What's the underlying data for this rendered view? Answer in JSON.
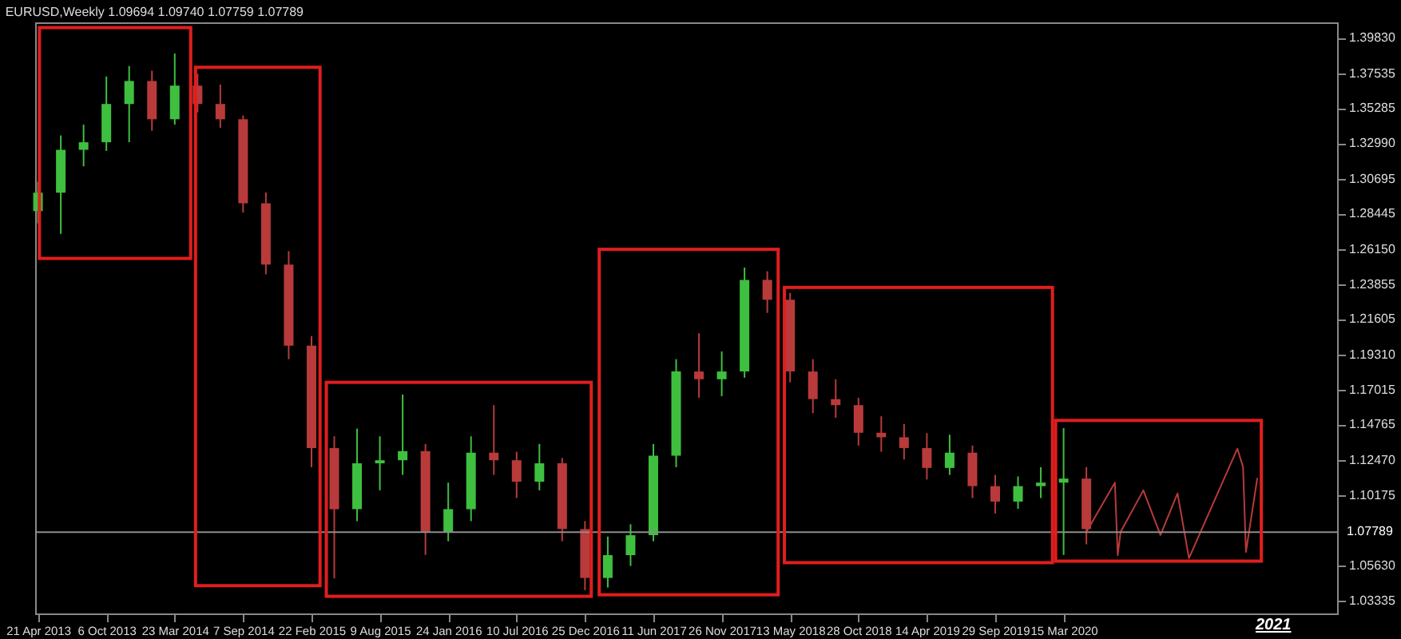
{
  "chart_data": {
    "type": "candlestick",
    "title": "EURUSD,Weekly  1.09694 1.09740 1.07759 1.07789",
    "x": [
      "2013-04-21",
      "2013-06-16",
      "2013-08-11",
      "2013-10-06",
      "2013-12-01",
      "2014-01-26",
      "2014-03-23",
      "2014-05-18",
      "2014-07-13",
      "2014-09-07",
      "2014-11-02",
      "2014-12-28",
      "2015-02-22",
      "2015-04-19",
      "2015-06-14",
      "2015-08-09",
      "2015-10-04",
      "2015-11-29",
      "2016-01-24",
      "2016-03-20",
      "2016-05-15",
      "2016-07-10",
      "2016-09-04",
      "2016-10-30",
      "2016-12-25",
      "2017-02-19",
      "2017-04-16",
      "2017-06-11",
      "2017-08-06",
      "2017-10-01",
      "2017-11-26",
      "2018-01-21",
      "2018-03-18",
      "2018-05-13",
      "2018-07-08",
      "2018-09-02",
      "2018-10-28",
      "2018-12-23",
      "2019-02-17",
      "2019-04-14",
      "2019-06-09",
      "2019-08-04",
      "2019-09-29",
      "2019-11-24",
      "2020-01-19",
      "2020-03-15",
      "2020-05-10"
    ],
    "ohlc": [
      [
        1.286,
        1.305,
        1.278,
        1.2979
      ],
      [
        1.2979,
        1.335,
        1.2712,
        1.3257
      ],
      [
        1.3257,
        1.342,
        1.315,
        1.3306
      ],
      [
        1.3306,
        1.3732,
        1.325,
        1.3554
      ],
      [
        1.3554,
        1.38,
        1.3306,
        1.3703
      ],
      [
        1.3703,
        1.377,
        1.338,
        1.3455
      ],
      [
        1.3455,
        1.3881,
        1.342,
        1.3673
      ],
      [
        1.3673,
        1.375,
        1.35,
        1.3554
      ],
      [
        1.3554,
        1.368,
        1.34,
        1.3455
      ],
      [
        1.3455,
        1.348,
        1.285,
        1.291
      ],
      [
        1.291,
        1.298,
        1.245,
        1.2513
      ],
      [
        1.2513,
        1.26,
        1.19,
        1.1988
      ],
      [
        1.1988,
        1.205,
        1.12,
        1.1324
      ],
      [
        1.1324,
        1.14,
        1.048,
        1.0928
      ],
      [
        1.0928,
        1.145,
        1.085,
        1.1225
      ],
      [
        1.1225,
        1.14,
        1.105,
        1.1245
      ],
      [
        1.1245,
        1.1671,
        1.115,
        1.1304
      ],
      [
        1.1304,
        1.135,
        1.0631,
        1.0779
      ],
      [
        1.0779,
        1.11,
        1.072,
        1.0928
      ],
      [
        1.0928,
        1.14,
        1.085,
        1.1294
      ],
      [
        1.1294,
        1.1602,
        1.115,
        1.1245
      ],
      [
        1.1245,
        1.13,
        1.1,
        1.1106
      ],
      [
        1.1106,
        1.135,
        1.105,
        1.1225
      ],
      [
        1.1225,
        1.126,
        1.072,
        1.0799
      ],
      [
        1.0799,
        1.085,
        1.0403,
        1.0482
      ],
      [
        1.0482,
        1.075,
        1.042,
        1.063
      ],
      [
        1.063,
        1.083,
        1.056,
        1.0759
      ],
      [
        1.0759,
        1.135,
        1.072,
        1.1275
      ],
      [
        1.1275,
        1.19,
        1.12,
        1.182
      ],
      [
        1.182,
        1.2068,
        1.165,
        1.177
      ],
      [
        1.177,
        1.195,
        1.166,
        1.182
      ],
      [
        1.182,
        1.2494,
        1.178,
        1.2414
      ],
      [
        1.2414,
        1.247,
        1.22,
        1.2285
      ],
      [
        1.2285,
        1.233,
        1.175,
        1.182
      ],
      [
        1.182,
        1.19,
        1.155,
        1.1641
      ],
      [
        1.1641,
        1.177,
        1.152,
        1.1602
      ],
      [
        1.1602,
        1.165,
        1.134,
        1.1423
      ],
      [
        1.1423,
        1.153,
        1.13,
        1.1394
      ],
      [
        1.1394,
        1.148,
        1.125,
        1.1324
      ],
      [
        1.1324,
        1.142,
        1.112,
        1.1195
      ],
      [
        1.1195,
        1.141,
        1.115,
        1.1294
      ],
      [
        1.1294,
        1.134,
        1.1,
        1.1077
      ],
      [
        1.1077,
        1.115,
        1.09,
        1.0977
      ],
      [
        1.0977,
        1.114,
        1.093,
        1.1077
      ],
      [
        1.1077,
        1.12,
        1.1,
        1.11
      ],
      [
        1.11,
        1.1453,
        1.0631,
        1.1126
      ],
      [
        1.1126,
        1.12,
        1.07,
        1.0799
      ]
    ],
    "colors": [
      "#3fbf3f",
      "#3fbf3f",
      "#3fbf3f",
      "#3fbf3f",
      "#3fbf3f",
      "#b83a3a",
      "#3fbf3f",
      "#b83a3a",
      "#b83a3a",
      "#b83a3a",
      "#b83a3a",
      "#b83a3a",
      "#b83a3a",
      "#b83a3a",
      "#3fbf3f",
      "#3fbf3f",
      "#3fbf3f",
      "#b83a3a",
      "#3fbf3f",
      "#3fbf3f",
      "#b83a3a",
      "#b83a3a",
      "#3fbf3f",
      "#b83a3a",
      "#b83a3a",
      "#3fbf3f",
      "#3fbf3f",
      "#3fbf3f",
      "#3fbf3f",
      "#b83a3a",
      "#3fbf3f",
      "#3fbf3f",
      "#b83a3a",
      "#b83a3a",
      "#b83a3a",
      "#b83a3a",
      "#b83a3a",
      "#b83a3a",
      "#b83a3a",
      "#b83a3a",
      "#3fbf3f",
      "#b83a3a",
      "#b83a3a",
      "#3fbf3f",
      "#3fbf3f",
      "#3fbf3f",
      "#b83a3a"
    ],
    "series": [
      {
        "type": "line",
        "color": "#b83a3a",
        "x": [
          "2020-05-10",
          "2020-07-19",
          "2020-07-26",
          "2020-08-02",
          "2020-09-27",
          "2020-11-08",
          "2020-12-20",
          "2021-01-17",
          "2021-05-16",
          "2021-05-30",
          "2021-06-06",
          "2021-07-04"
        ],
        "values": [
          1.078,
          1.11,
          1.063,
          1.078,
          1.105,
          1.076,
          1.103,
          1.061,
          1.132,
          1.12,
          1.065,
          1.113
        ]
      }
    ],
    "xlim": [
      "2013-04-14",
      "2022-01-16"
    ],
    "xticks": [
      {
        "value": "2013-04-21",
        "label": "21 Apr 2013"
      },
      {
        "value": "2013-10-06",
        "label": "6 Oct 2013"
      },
      {
        "value": "2014-03-23",
        "label": "23 Mar 2014"
      },
      {
        "value": "2014-09-07",
        "label": "7 Sep 2014"
      },
      {
        "value": "2015-02-22",
        "label": "22 Feb 2015"
      },
      {
        "value": "2015-08-09",
        "label": "9 Aug 2015"
      },
      {
        "value": "2016-01-24",
        "label": "24 Jan 2016"
      },
      {
        "value": "2016-07-10",
        "label": "10 Jul 2016"
      },
      {
        "value": "2016-12-25",
        "label": "25 Dec 2016"
      },
      {
        "value": "2017-06-11",
        "label": "11 Jun 2017"
      },
      {
        "value": "2017-11-26",
        "label": "26 Nov 2017"
      },
      {
        "value": "2018-05-13",
        "label": "13 May 2018"
      },
      {
        "value": "2018-10-28",
        "label": "28 Oct 2018"
      },
      {
        "value": "2019-04-14",
        "label": "14 Apr 2019"
      },
      {
        "value": "2019-09-29",
        "label": "29 Sep 2019"
      },
      {
        "value": "2020-03-15",
        "label": "15 Mar 2020"
      }
    ],
    "ylim": [
      1.0252,
      1.4083
    ],
    "yticks": [
      {
        "value": 1.03335,
        "label": "1.03335"
      },
      {
        "value": 1.0563,
        "label": "1.05630"
      },
      {
        "value": 1.10175,
        "label": "1.10175"
      },
      {
        "value": 1.1247,
        "label": "1.12470"
      },
      {
        "value": 1.14765,
        "label": "1.14765"
      },
      {
        "value": 1.17015,
        "label": "1.17015"
      },
      {
        "value": 1.1931,
        "label": "1.19310"
      },
      {
        "value": 1.21605,
        "label": "1.21605"
      },
      {
        "value": 1.23855,
        "label": "1.23855"
      },
      {
        "value": 1.2615,
        "label": "1.26150"
      },
      {
        "value": 1.28445,
        "label": "1.28445"
      },
      {
        "value": 1.30695,
        "label": "1.30695"
      },
      {
        "value": 1.3299,
        "label": "1.32990"
      },
      {
        "value": 1.35285,
        "label": "1.35285"
      },
      {
        "value": 1.37535,
        "label": "1.37535"
      },
      {
        "value": 1.3983,
        "label": "1.39830"
      }
    ],
    "ref_lines": [
      {
        "axis": "y",
        "value": 1.07789,
        "label": "1.07789",
        "color": "#8c8c8c"
      }
    ],
    "annotations": [
      "2021"
    ],
    "grid": false
  }
}
